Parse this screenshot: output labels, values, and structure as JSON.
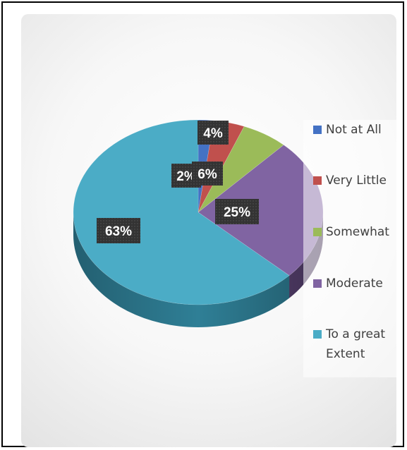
{
  "chart_data": {
    "type": "pie",
    "style": "3d",
    "legend_position": "right",
    "categories": [
      "Not at All",
      "Very Little",
      "Somewhat",
      "Moderate",
      "To a great Extent"
    ],
    "values": [
      2,
      4,
      6,
      25,
      63
    ],
    "data_labels": [
      "2%",
      "4%",
      "6%",
      "25%",
      "63%"
    ],
    "colors": [
      "#4472c4",
      "#c0504d",
      "#9bbb59",
      "#8064a2",
      "#4bacc6"
    ],
    "dark_colors": [
      "#2f528f",
      "#8f3532",
      "#6f8a3d",
      "#5b4475",
      "#2f7f96"
    ],
    "label_box_color": "#333333",
    "label_text_color": "#ffffff"
  }
}
